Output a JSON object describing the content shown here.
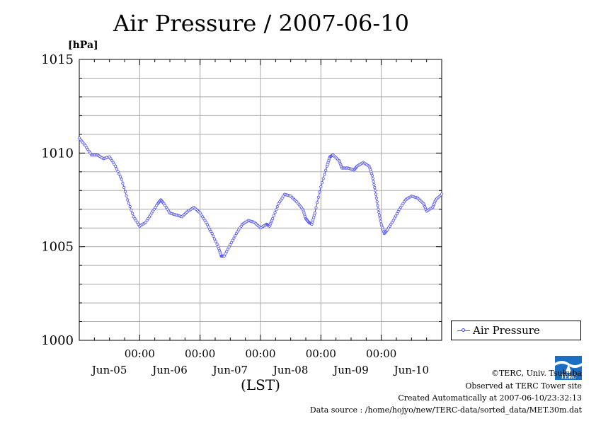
{
  "chart_data": {
    "type": "line",
    "title": "Air Pressure / 2007-06-10",
    "ylabel": "[hPa]",
    "xlabel": "(LST)",
    "ylim": [
      1000,
      1015
    ],
    "yticks": [
      "1000",
      "1005",
      "1010",
      "1015"
    ],
    "x_time_labels": [
      "00:00",
      "00:00",
      "00:00",
      "00:00",
      "00:00"
    ],
    "x_date_labels": [
      "Jun-05",
      "Jun-06",
      "Jun-07",
      "Jun-08",
      "Jun-09",
      "Jun-10"
    ],
    "xlim_days": [
      0,
      6
    ],
    "grid": true,
    "legend_position": "bottom-right",
    "series": [
      {
        "name": "Air Pressure",
        "color": "#4a4af0",
        "marker": "circle",
        "points": [
          [
            0.0,
            1010.8
          ],
          [
            0.1,
            1010.4
          ],
          [
            0.2,
            1009.9
          ],
          [
            0.3,
            1009.9
          ],
          [
            0.4,
            1009.7
          ],
          [
            0.5,
            1009.8
          ],
          [
            0.6,
            1009.3
          ],
          [
            0.7,
            1008.6
          ],
          [
            0.8,
            1007.5
          ],
          [
            0.9,
            1006.6
          ],
          [
            1.0,
            1006.1
          ],
          [
            1.1,
            1006.3
          ],
          [
            1.2,
            1006.8
          ],
          [
            1.3,
            1007.3
          ],
          [
            1.35,
            1007.5
          ],
          [
            1.4,
            1007.3
          ],
          [
            1.5,
            1006.8
          ],
          [
            1.6,
            1006.7
          ],
          [
            1.7,
            1006.6
          ],
          [
            1.8,
            1006.9
          ],
          [
            1.9,
            1007.1
          ],
          [
            2.0,
            1006.8
          ],
          [
            2.1,
            1006.3
          ],
          [
            2.2,
            1005.7
          ],
          [
            2.3,
            1005.0
          ],
          [
            2.35,
            1004.5
          ],
          [
            2.4,
            1004.5
          ],
          [
            2.5,
            1005.1
          ],
          [
            2.6,
            1005.7
          ],
          [
            2.7,
            1006.2
          ],
          [
            2.8,
            1006.4
          ],
          [
            2.9,
            1006.3
          ],
          [
            3.0,
            1006.0
          ],
          [
            3.1,
            1006.2
          ],
          [
            3.15,
            1006.1
          ],
          [
            3.2,
            1006.5
          ],
          [
            3.3,
            1007.3
          ],
          [
            3.4,
            1007.8
          ],
          [
            3.5,
            1007.7
          ],
          [
            3.6,
            1007.4
          ],
          [
            3.7,
            1007.0
          ],
          [
            3.75,
            1006.5
          ],
          [
            3.8,
            1006.3
          ],
          [
            3.85,
            1006.2
          ],
          [
            3.9,
            1006.8
          ],
          [
            4.0,
            1008.2
          ],
          [
            4.1,
            1009.3
          ],
          [
            4.15,
            1009.8
          ],
          [
            4.2,
            1009.9
          ],
          [
            4.3,
            1009.6
          ],
          [
            4.35,
            1009.2
          ],
          [
            4.45,
            1009.2
          ],
          [
            4.55,
            1009.1
          ],
          [
            4.6,
            1009.3
          ],
          [
            4.7,
            1009.5
          ],
          [
            4.8,
            1009.3
          ],
          [
            4.85,
            1008.8
          ],
          [
            4.9,
            1008.0
          ],
          [
            4.95,
            1007.0
          ],
          [
            5.0,
            1006.2
          ],
          [
            5.05,
            1005.7
          ],
          [
            5.1,
            1005.9
          ],
          [
            5.2,
            1006.4
          ],
          [
            5.3,
            1007.0
          ],
          [
            5.4,
            1007.5
          ],
          [
            5.5,
            1007.7
          ],
          [
            5.6,
            1007.6
          ],
          [
            5.7,
            1007.3
          ],
          [
            5.75,
            1006.9
          ],
          [
            5.85,
            1007.1
          ],
          [
            5.9,
            1007.5
          ],
          [
            6.0,
            1007.8
          ]
        ]
      }
    ]
  },
  "footer": {
    "copyright": "©TERC, Univ. Tsukuba",
    "site": "Observed at TERC Tower site",
    "created": "Created Automatically at 2007-06-10/23:32:13",
    "source": "Data source : /home/hojyo/new/TERC-data/sorted_data/MET.30m.dat"
  },
  "logo": {
    "text": "TERC",
    "color": "#1b6fc2"
  }
}
